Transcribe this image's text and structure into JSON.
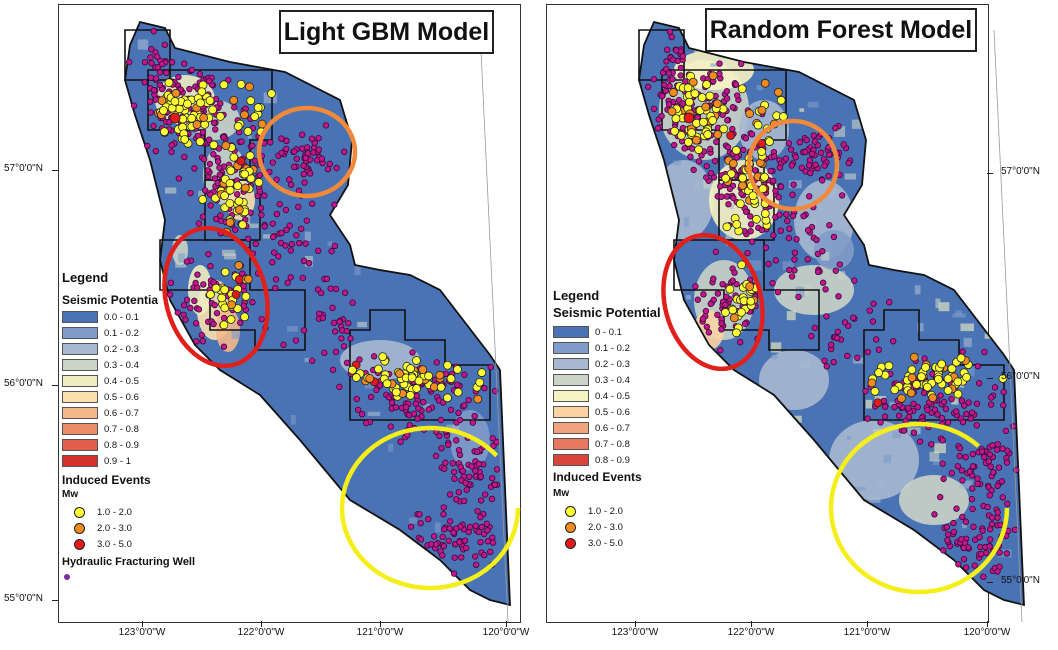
{
  "panels": [
    {
      "title": "Light GBM Model",
      "legend": {
        "heading": "Legend",
        "potential_title": "Seismic Potentia",
        "classes": [
          {
            "label": "0.0 - 0.1",
            "color": "#4a73b5"
          },
          {
            "label": "0.1 - 0.2",
            "color": "#7f9bc9"
          },
          {
            "label": "0.2 - 0.3",
            "color": "#a7b9d0"
          },
          {
            "label": "0.3 - 0.4",
            "color": "#c9d3c6"
          },
          {
            "label": "0.4 - 0.5",
            "color": "#eeedc0"
          },
          {
            "label": "0.5 - 0.6",
            "color": "#fbe0ad"
          },
          {
            "label": "0.6 - 0.7",
            "color": "#f4b88b"
          },
          {
            "label": "0.7 - 0.8",
            "color": "#ec8d67"
          },
          {
            "label": "0.8 - 0.9",
            "color": "#e25f4c"
          },
          {
            "label": "0.9 - 1",
            "color": "#d4312d"
          }
        ],
        "events_title": "Induced Events",
        "mw_label": "Mw",
        "events": [
          {
            "label": "1.0 - 2.0",
            "color": "#ffff33"
          },
          {
            "label": "2.0 - 3.0",
            "color": "#f28c1e"
          },
          {
            "label": "3.0 - 5.0",
            "color": "#e31a1c"
          }
        ],
        "well_label": "Hydraulic Fracturing Well",
        "well_color": "#7a2fa0"
      },
      "lat_labels": [
        "57°0'0\"N",
        "56°0'0\"N",
        "55°0'0\"N"
      ],
      "lon_labels": [
        "123°0'0\"W",
        "122°0'0\"W",
        "121°0'0\"W",
        "120°0'0\"W"
      ],
      "circles": [
        {
          "name": "orange-circle",
          "color": "#f08a3a"
        },
        {
          "name": "red-circle",
          "color": "#e0201a"
        },
        {
          "name": "yellow-circle",
          "color": "#f4ee1a"
        }
      ]
    },
    {
      "title": "Random Forest Model",
      "legend": {
        "heading": "Legend",
        "potential_title": "Seismic Potential",
        "classes": [
          {
            "label": "0 - 0.1",
            "color": "#4a73b5"
          },
          {
            "label": "0.1 - 0.2",
            "color": "#7f9bc9"
          },
          {
            "label": "0.2 - 0.3",
            "color": "#a7b9d0"
          },
          {
            "label": "0.3 - 0.4",
            "color": "#c9d3c6"
          },
          {
            "label": "0.4 - 0.5",
            "color": "#f6f3c2"
          },
          {
            "label": "0.5 - 0.6",
            "color": "#fbd3a3"
          },
          {
            "label": "0.6 - 0.7",
            "color": "#f0a37c"
          },
          {
            "label": "0.7 - 0.8",
            "color": "#e7775e"
          },
          {
            "label": "0.8 - 0.9",
            "color": "#d9443a"
          }
        ],
        "events_title": "Induced Events",
        "mw_label": "Mw",
        "events": [
          {
            "label": "1.0 - 2.0",
            "color": "#ffff33"
          },
          {
            "label": "2.0 - 3.0",
            "color": "#f28c1e"
          },
          {
            "label": "3.0 - 5.0",
            "color": "#e31a1c"
          }
        ]
      },
      "lat_labels": [
        "57°0'0\"N",
        "56°0'0\"N",
        "55°0'0\"N"
      ],
      "lon_labels": [
        "123°0'0\"W",
        "122°0'0\"W",
        "121°0'0\"W",
        "120°0'0\"W"
      ],
      "circles": [
        {
          "name": "orange-circle",
          "color": "#f08a3a"
        },
        {
          "name": "red-circle",
          "color": "#e0201a"
        },
        {
          "name": "yellow-circle",
          "color": "#f4ee1a"
        }
      ]
    }
  ]
}
